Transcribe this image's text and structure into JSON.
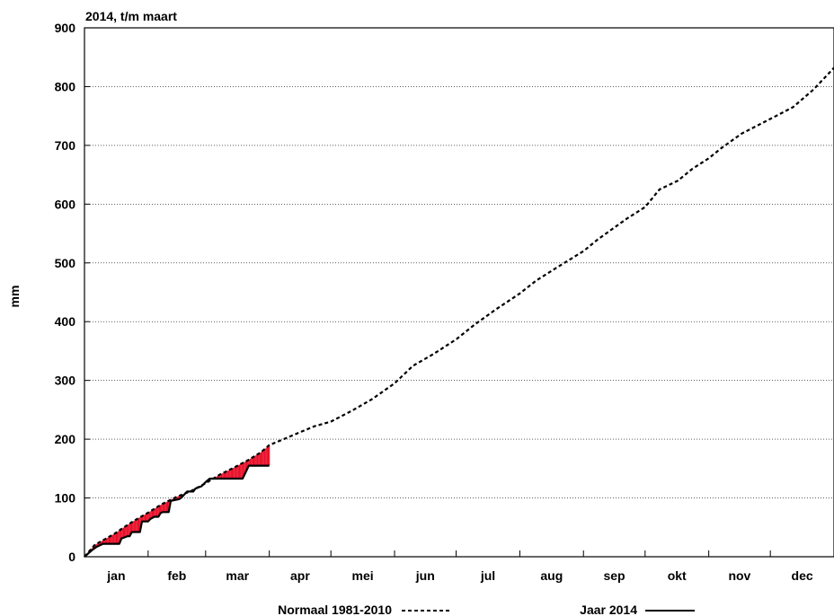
{
  "chart_data": {
    "type": "line",
    "title": "2014, t/m maart",
    "xlabel": "",
    "ylabel": "mm",
    "ylim": [
      0,
      900
    ],
    "yticks": [
      0,
      100,
      200,
      300,
      400,
      500,
      600,
      700,
      800,
      900
    ],
    "xlim_days": [
      0,
      365
    ],
    "grid": "horizontal-dotted",
    "legend_position": "bottom",
    "month_boundaries_day": [
      0,
      31,
      59,
      90,
      120,
      151,
      181,
      212,
      243,
      273,
      304,
      334,
      365
    ],
    "categories": [
      "jan",
      "feb",
      "mar",
      "apr",
      "mei",
      "jun",
      "jul",
      "aug",
      "sep",
      "okt",
      "nov",
      "dec"
    ],
    "series": [
      {
        "name": "Normaal 1981-2010",
        "style": "dashed",
        "color": "#000000",
        "x_day": [
          0,
          5,
          10,
          15,
          20,
          25,
          31,
          38,
          45,
          52,
          59,
          66,
          73,
          80,
          86,
          90,
          97,
          105,
          112,
          120,
          130,
          140,
          151,
          160,
          170,
          181,
          190,
          200,
          212,
          220,
          230,
          243,
          250,
          258,
          264,
          273,
          280,
          289,
          296,
          304,
          310,
          320,
          334,
          345,
          355,
          365
        ],
        "y_mm": [
          0,
          20,
          30,
          40,
          52,
          63,
          75,
          90,
          102,
          112,
          125,
          140,
          152,
          165,
          178,
          190,
          200,
          212,
          222,
          230,
          248,
          268,
          295,
          325,
          345,
          370,
          395,
          420,
          448,
          470,
          492,
          520,
          540,
          560,
          575,
          595,
          625,
          640,
          660,
          678,
          695,
          720,
          745,
          765,
          795,
          832
        ]
      },
      {
        "name": "Jaar 2014",
        "style": "solid",
        "color": "#000000",
        "x_day": [
          0,
          4,
          6,
          9,
          12,
          17,
          18,
          21,
          22,
          23,
          27,
          28,
          31,
          32,
          34,
          36,
          37,
          38,
          41,
          42,
          46,
          47,
          50,
          53,
          54,
          57,
          59,
          61,
          70,
          74,
          77,
          78,
          80,
          90
        ],
        "y_mm": [
          0,
          12,
          17,
          22,
          22,
          22,
          31,
          35,
          35,
          42,
          42,
          60,
          60,
          64,
          68,
          68,
          74,
          76,
          76,
          95,
          98,
          100,
          111,
          111,
          116,
          120,
          127,
          133,
          133,
          133,
          133,
          140,
          155,
          155
        ]
      }
    ],
    "deficit_fill_color": "#e8102a",
    "surplus_fill_color": "#3a86b0",
    "fill_until_day": 90
  },
  "legend": [
    {
      "label": "Normaal 1981-2010",
      "style": "dashed"
    },
    {
      "label": "Jaar 2014",
      "style": "solid"
    }
  ]
}
